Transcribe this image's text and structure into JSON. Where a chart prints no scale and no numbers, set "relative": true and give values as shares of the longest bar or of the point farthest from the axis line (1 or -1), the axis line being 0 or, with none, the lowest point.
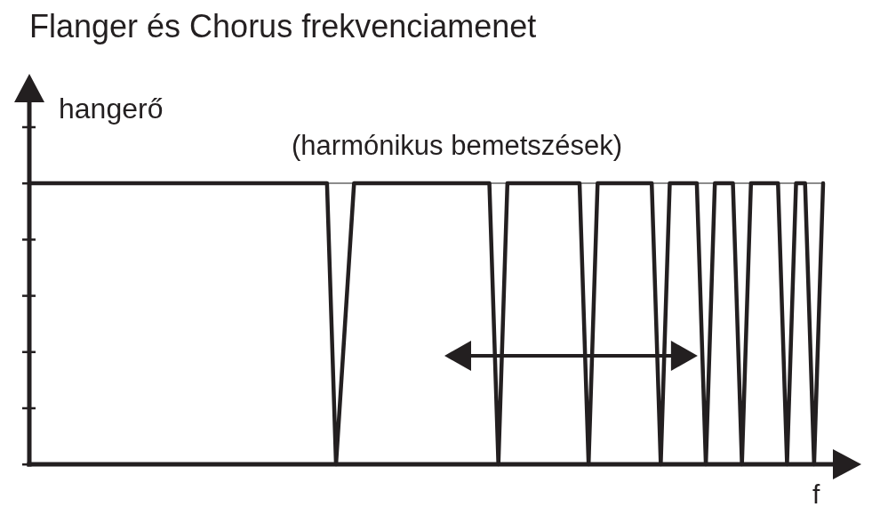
{
  "chart_data": {
    "type": "line",
    "title": "Flanger és Chorus frekvenciamenet",
    "xlabel": "f",
    "ylabel": "hangerő",
    "annotations": [
      "(harmónikus bemetszések)"
    ],
    "relative": true,
    "categories": [
      null,
      null,
      null,
      null,
      null,
      null,
      null,
      null,
      null,
      null,
      null,
      null,
      null,
      null,
      null,
      null,
      null,
      null,
      null,
      null,
      null,
      null,
      null,
      null,
      null,
      null,
      null,
      null,
      null,
      null,
      null,
      null,
      null,
      null,
      null,
      null,
      null,
      null,
      null,
      null,
      null,
      null,
      null,
      null,
      null,
      null,
      null,
      null,
      null,
      null,
      null,
      null,
      null,
      null,
      null,
      null,
      null,
      null,
      null,
      null,
      null,
      null,
      null,
      null,
      null,
      null,
      null,
      null,
      null,
      null,
      null,
      null,
      null,
      null,
      null,
      null,
      null,
      null,
      null,
      null,
      null,
      null,
      null,
      null,
      null,
      null,
      null,
      null,
      null
    ],
    "values": [
      1,
      1,
      1,
      1,
      1,
      1,
      1,
      1,
      1,
      1,
      1,
      1,
      1,
      1,
      1,
      1,
      1,
      1,
      1,
      1,
      1,
      1,
      1,
      1,
      1,
      1,
      1,
      1,
      1,
      1,
      1,
      1,
      1,
      1,
      0,
      0.5,
      1,
      1,
      1,
      1,
      1,
      1,
      1,
      1,
      1,
      1,
      1,
      1,
      1,
      1,
      1,
      1,
      0,
      1,
      1,
      1,
      1,
      1,
      1,
      1,
      1,
      1,
      0,
      1,
      1,
      1,
      1,
      1,
      1,
      1,
      0,
      1,
      1,
      1,
      1,
      0,
      1,
      1,
      1,
      0,
      1,
      1,
      1,
      1,
      0,
      1,
      1,
      0,
      1
    ],
    "color": "#231f20",
    "ref_lines": [
      {
        "axis": "y",
        "value": 1,
        "color": "#8c8c8c"
      }
    ]
  }
}
